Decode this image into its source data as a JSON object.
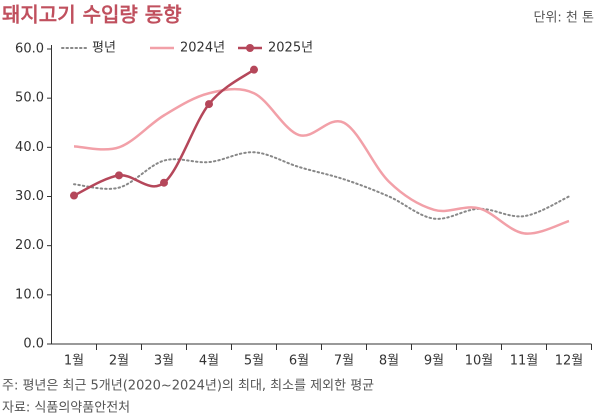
{
  "chart_data": {
    "type": "line",
    "title": "돼지고기 수입량 동향",
    "unit_label": "단위: 천 톤",
    "note": "주: 평년은 최근 5개년(2020~2024년)의 최대, 최소를 제외한 평균",
    "source": "자료: 식품의약품안전처",
    "categories": [
      "1월",
      "2월",
      "3월",
      "4월",
      "5월",
      "6월",
      "7월",
      "8월",
      "9월",
      "10월",
      "11월",
      "12월"
    ],
    "series": [
      {
        "name": "평년",
        "color": "#888888",
        "style": "dotted",
        "values": [
          32.5,
          31.8,
          37.3,
          37,
          39,
          36,
          33.5,
          30,
          25.5,
          27.5,
          26,
          30
        ]
      },
      {
        "name": "2024년",
        "color": "#f2a0a8",
        "style": "solid",
        "values": [
          40.2,
          40,
          46.5,
          51,
          51,
          42.5,
          45,
          33,
          27.3,
          27.6,
          22.5,
          25
        ]
      },
      {
        "name": "2025년",
        "color": "#b5475a",
        "style": "marker",
        "values": [
          30.2,
          34.3,
          32.8,
          48.8,
          55.8,
          null,
          null,
          null,
          null,
          null,
          null,
          null
        ]
      }
    ],
    "ylim": [
      0,
      60
    ],
    "yticks": [
      {
        "value": 0,
        "label": "0.0"
      },
      {
        "value": 10,
        "label": "10.0"
      },
      {
        "value": 20,
        "label": "20.0"
      },
      {
        "value": 30,
        "label": "30.0"
      },
      {
        "value": 40,
        "label": "40.0"
      },
      {
        "value": 50,
        "label": "50.0"
      },
      {
        "value": 60,
        "label": "60.0"
      }
    ],
    "grid": false,
    "legend": "top-left"
  }
}
